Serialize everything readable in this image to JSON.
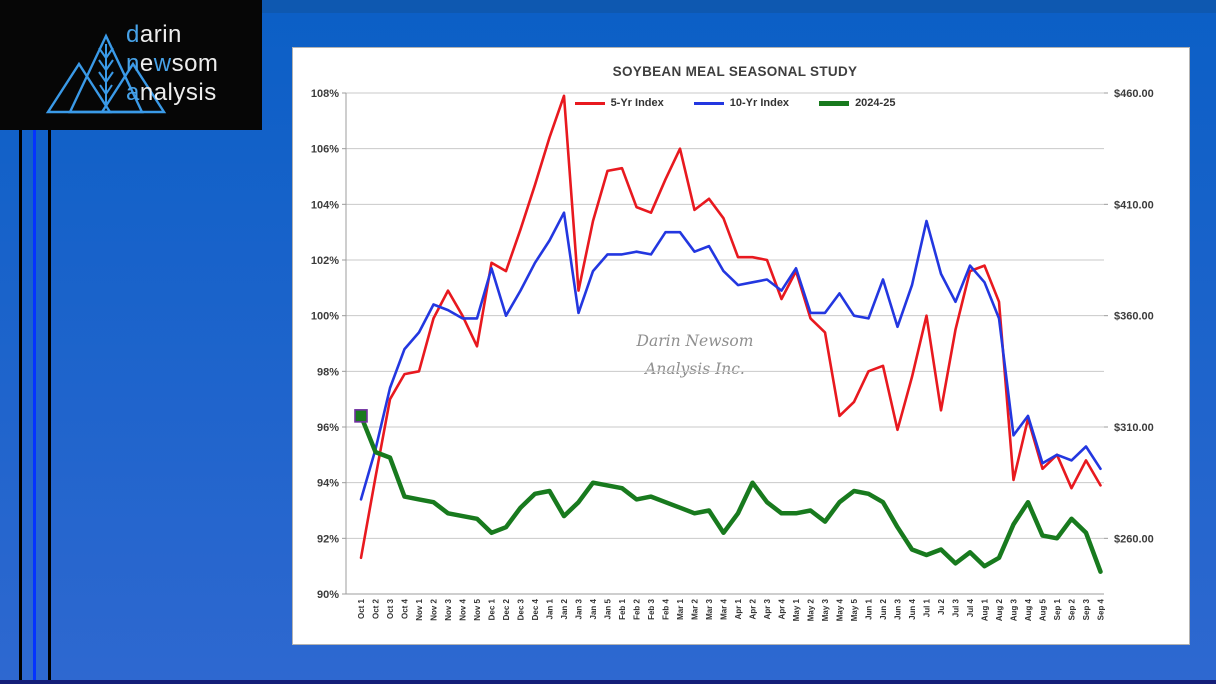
{
  "page": {
    "background_top": "#0b5fc6",
    "background_bottom": "#2e68d0",
    "top_band_color": "#0e58b0",
    "bottom_bar_color": "#141e78",
    "stripes": [
      {
        "x": 19,
        "width": 3,
        "color": "#000000"
      },
      {
        "x": 33,
        "width": 3,
        "color": "#0433ff"
      },
      {
        "x": 48,
        "width": 3,
        "color": "#000000"
      }
    ]
  },
  "logo": {
    "accent_color": "#47a2e8",
    "text_color": "#ededed",
    "lines": [
      {
        "segments": [
          {
            "text": "d",
            "accent": true
          },
          {
            "text": "arin",
            "accent": false
          }
        ]
      },
      {
        "segments": [
          {
            "text": "n",
            "accent": true
          },
          {
            "text": "e",
            "accent": false
          },
          {
            "text": "w",
            "accent": true
          },
          {
            "text": "som",
            "accent": false
          }
        ]
      },
      {
        "segments": [
          {
            "text": "a",
            "accent": true
          },
          {
            "text": "nalysis",
            "accent": false
          }
        ]
      }
    ]
  },
  "watermark": {
    "line1": "Darin Newsom",
    "line2": "Analysis Inc."
  },
  "chart_data": {
    "type": "line",
    "title": "SOYBEAN MEAL SEASONAL STUDY",
    "legend_position": "top",
    "grid": "horizontal",
    "left_axis": {
      "min": 90,
      "max": 108,
      "step": 2,
      "tick_suffix": "%",
      "ticks": [
        "108%",
        "106%",
        "104%",
        "102%",
        "100%",
        "98%",
        "96%",
        "94%",
        "92%",
        "90%"
      ]
    },
    "right_axis": {
      "labels": [
        {
          "text": "$460.00",
          "at": 108
        },
        {
          "text": "$410.00",
          "at": 104
        },
        {
          "text": "$360.00",
          "at": 100
        },
        {
          "text": "$310.00",
          "at": 96
        },
        {
          "text": "$260.00",
          "at": 92
        }
      ]
    },
    "categories": [
      "Oct 1",
      "Oct 2",
      "Oct 3",
      "Oct 4",
      "Nov 1",
      "Nov 2",
      "Nov 3",
      "Nov 4",
      "Nov 5",
      "Dec 1",
      "Dec 2",
      "Dec 3",
      "Dec 4",
      "Jan 1",
      "Jan 2",
      "Jan 3",
      "Jan 4",
      "Jan 5",
      "Feb 1",
      "Feb 2",
      "Feb 3",
      "Feb 4",
      "Mar 1",
      "Mar 2",
      "Mar 3",
      "Mar 4",
      "Apr 1",
      "Apr 2",
      "Apr 3",
      "Apr 4",
      "May 1",
      "May 2",
      "May 3",
      "May 4",
      "May 5",
      "Jun 1",
      "Jun 2",
      "Jun 3",
      "Jun 4",
      "Jul 1",
      "Ju 2",
      "Jul 3",
      "Jul 4",
      "Aug 1",
      "Aug 2",
      "Aug 3",
      "Aug 4",
      "Aug 5",
      "Sep 1",
      "Sep 2",
      "Sep 3",
      "Sep 4"
    ],
    "series": [
      {
        "name": "5-Yr Index",
        "color": "#e8191f",
        "width": 2.6,
        "values": [
          91.3,
          94.2,
          97.0,
          97.9,
          98.0,
          99.9,
          100.9,
          100.0,
          98.9,
          101.9,
          101.6,
          103.1,
          104.7,
          106.4,
          107.9,
          100.9,
          103.4,
          105.2,
          105.3,
          103.9,
          103.7,
          104.9,
          106.0,
          103.8,
          104.2,
          103.5,
          102.1,
          102.1,
          102.0,
          100.6,
          101.6,
          99.9,
          99.4,
          96.4,
          96.9,
          98.0,
          98.2,
          95.9,
          97.8,
          100.0,
          96.6,
          99.5,
          101.6,
          101.8,
          100.5,
          94.1,
          96.3,
          94.5,
          95.0,
          93.8,
          94.8,
          93.9
        ]
      },
      {
        "name": "10-Yr Index",
        "color": "#2337e0",
        "width": 2.6,
        "values": [
          93.4,
          95.2,
          97.4,
          98.8,
          99.4,
          100.4,
          100.2,
          99.9,
          99.9,
          101.7,
          100.0,
          100.9,
          101.9,
          102.7,
          103.7,
          100.1,
          101.6,
          102.2,
          102.2,
          102.3,
          102.2,
          103.0,
          103.0,
          102.3,
          102.5,
          101.6,
          101.1,
          101.2,
          101.3,
          100.9,
          101.7,
          100.1,
          100.1,
          100.8,
          100.0,
          99.9,
          101.3,
          99.6,
          101.1,
          103.4,
          101.5,
          100.5,
          101.8,
          101.2,
          99.9,
          95.7,
          96.4,
          94.7,
          95.0,
          94.8,
          95.3,
          94.5
        ]
      },
      {
        "name": "2024-25",
        "color": "#187a1e",
        "width": 4.5,
        "start_marker": {
          "shape": "square",
          "size": 12,
          "fill": "#187a1e",
          "border": "#7030a0"
        },
        "values": [
          96.4,
          95.1,
          94.9,
          93.5,
          93.4,
          93.3,
          92.9,
          92.8,
          92.7,
          92.2,
          92.4,
          93.1,
          93.6,
          93.7,
          92.8,
          93.3,
          94.0,
          93.9,
          93.8,
          93.4,
          93.5,
          93.3,
          93.1,
          92.9,
          93.0,
          92.2,
          92.9,
          94.0,
          93.3,
          92.9,
          92.9,
          93.0,
          92.6,
          93.3,
          93.7,
          93.6,
          93.3,
          92.4,
          91.6,
          91.4,
          91.6,
          91.1,
          91.5,
          91.0,
          91.3,
          92.5,
          93.3,
          92.1,
          92.0,
          92.7,
          92.2,
          90.8
        ]
      }
    ],
    "style": {
      "gridline_color": "#c9c9c9",
      "axis_color": "#9c9c9c",
      "tick_label_color": "#3c3c3c",
      "x_label_color": "#333333"
    }
  }
}
